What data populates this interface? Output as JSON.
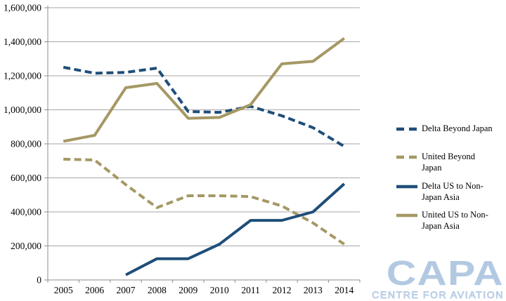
{
  "chart_data": {
    "type": "line",
    "x": [
      "2005",
      "2006",
      "2007",
      "2008",
      "2009",
      "2010",
      "2011",
      "2012",
      "2013",
      "2014"
    ],
    "series": [
      {
        "name": "Delta Beyond Japan",
        "style": "dashed",
        "color": "#1F4E79",
        "values": [
          1250000,
          1215000,
          1220000,
          1245000,
          990000,
          985000,
          1020000,
          965000,
          895000,
          785000
        ]
      },
      {
        "name": "United Beyond Japan",
        "style": "dashed",
        "color": "#A59864",
        "values": [
          710000,
          705000,
          560000,
          425000,
          495000,
          495000,
          490000,
          435000,
          335000,
          210000
        ]
      },
      {
        "name": "Delta US to Non-Japan Asia",
        "style": "solid",
        "color": "#1F4E79",
        "values": [
          null,
          null,
          30000,
          125000,
          125000,
          210000,
          350000,
          350000,
          400000,
          565000
        ]
      },
      {
        "name": "United US to Non-Japan Asia",
        "style": "solid",
        "color": "#A59864",
        "values": [
          815000,
          850000,
          1130000,
          1155000,
          950000,
          955000,
          1030000,
          1270000,
          1285000,
          1420000
        ]
      }
    ],
    "ylim": [
      0,
      1600000
    ],
    "yticks": [
      {
        "value": 0,
        "label": "0"
      },
      {
        "value": 200000,
        "label": "200,000"
      },
      {
        "value": 400000,
        "label": "400,000"
      },
      {
        "value": 600000,
        "label": "600,000"
      },
      {
        "value": 800000,
        "label": "800,000"
      },
      {
        "value": 1000000,
        "label": "1,000,000"
      },
      {
        "value": 1200000,
        "label": "1,200,000"
      },
      {
        "value": 1400000,
        "label": "1,400,000"
      },
      {
        "value": 1600000,
        "label": "1,600,000"
      }
    ],
    "grid": true,
    "legend_position": "right"
  },
  "legend": {
    "items": [
      {
        "lines": [
          "Delta Beyond Japan"
        ],
        "style": "dashed",
        "color": "#1F4E79"
      },
      {
        "lines": [
          "United Beyond",
          "Japan"
        ],
        "style": "dashed",
        "color": "#A59864"
      },
      {
        "lines": [
          "Delta US to Non-",
          "Japan Asia"
        ],
        "style": "solid",
        "color": "#1F4E79"
      },
      {
        "lines": [
          "United US to Non-",
          "Japan Asia"
        ],
        "style": "solid",
        "color": "#A59864"
      }
    ]
  },
  "watermark": {
    "name": "CAPA",
    "tagline": "CENTRE FOR AVIATION"
  },
  "colors": {
    "delta_blue": "#1F4E79",
    "united_tan": "#A59864",
    "gridline": "#A6A6A6",
    "axis": "#8C8C8C",
    "logo_blue": "#B3C9E2",
    "logo_outline": "#B9CDE4"
  }
}
